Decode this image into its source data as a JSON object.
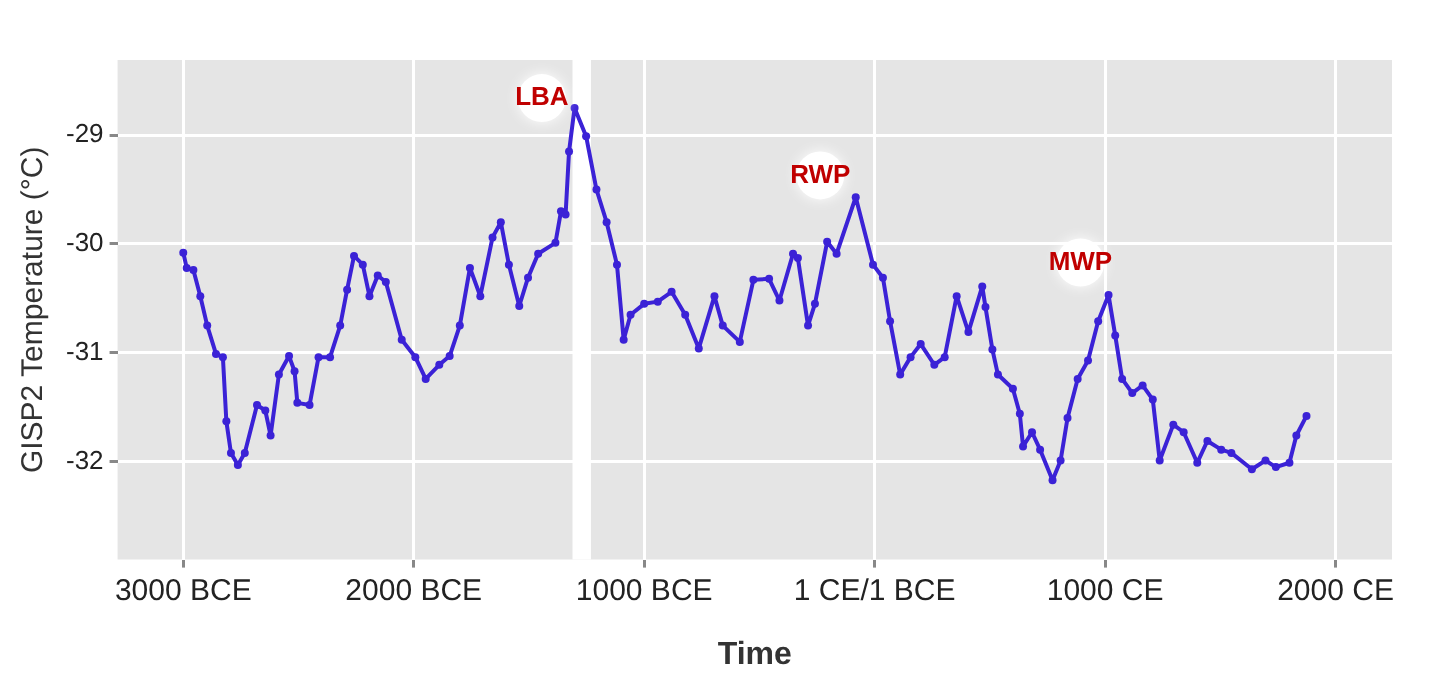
{
  "chart_data": {
    "type": "line",
    "xlabel": "Time",
    "ylabel": "GISP2 Temperature (°C)",
    "series": [
      {
        "color": "#3b22d6",
        "x": [
          -3000,
          -2985,
          -2956,
          -2926,
          -2896,
          -2858,
          -2828,
          -2813,
          -2793,
          -2763,
          -2733,
          -2680,
          -2644,
          -2621,
          -2585,
          -2541,
          -2517,
          -2505,
          -2452,
          -2413,
          -2363,
          -2319,
          -2289,
          -2259,
          -2221,
          -2192,
          -2156,
          -2121,
          -2052,
          -1993,
          -1948,
          -1889,
          -1844,
          -1800,
          -1756,
          -1711,
          -1658,
          -1622,
          -1587,
          -1542,
          -1504,
          -1460,
          -1385,
          -1361,
          -1341,
          -1326,
          -1302,
          -1252,
          -1207,
          -1163,
          -1118,
          -1089,
          -1059,
          -1000,
          -941,
          -881,
          -822,
          -763,
          -695,
          -659,
          -585,
          -526,
          -458,
          -413,
          -354,
          -333,
          -289,
          -259,
          -206,
          -165,
          -82,
          -7,
          36,
          67,
          111,
          156,
          200,
          259,
          304,
          356,
          407,
          467,
          481,
          511,
          535,
          600,
          630,
          644,
          683,
          718,
          772,
          807,
          837,
          881,
          926,
          970,
          1015,
          1044,
          1074,
          1118,
          1163,
          1207,
          1237,
          1296,
          1341,
          1400,
          1444,
          1504,
          1548,
          1637,
          1696,
          1741,
          1800,
          1830,
          1874
        ],
        "values": [
          -30.08,
          -30.22,
          -30.24,
          -30.48,
          -30.75,
          -31.01,
          -31.04,
          -31.63,
          -31.92,
          -32.03,
          -31.92,
          -31.48,
          -31.53,
          -31.76,
          -31.2,
          -31.03,
          -31.17,
          -31.46,
          -31.48,
          -31.04,
          -31.04,
          -30.75,
          -30.42,
          -30.11,
          -30.19,
          -30.48,
          -30.29,
          -30.35,
          -30.88,
          -31.04,
          -31.24,
          -31.11,
          -31.03,
          -30.75,
          -30.22,
          -30.48,
          -29.94,
          -29.8,
          -30.19,
          -30.57,
          -30.31,
          -30.09,
          -29.99,
          -29.7,
          -29.73,
          -29.15,
          -28.75,
          -29.01,
          -29.5,
          -29.8,
          -30.19,
          -30.88,
          -30.65,
          -30.55,
          -30.53,
          -30.44,
          -30.65,
          -30.96,
          -30.48,
          -30.75,
          -30.9,
          -30.33,
          -30.32,
          -30.52,
          -30.09,
          -30.13,
          -30.75,
          -30.55,
          -29.98,
          -30.09,
          -29.57,
          -30.19,
          -30.31,
          -30.71,
          -31.2,
          -31.04,
          -30.92,
          -31.11,
          -31.04,
          -30.48,
          -30.81,
          -30.39,
          -30.58,
          -30.97,
          -31.2,
          -31.33,
          -31.56,
          -31.86,
          -31.73,
          -31.89,
          -32.17,
          -31.99,
          -31.6,
          -31.24,
          -31.07,
          -30.71,
          -30.47,
          -30.84,
          -31.24,
          -31.37,
          -31.3,
          -31.43,
          -31.99,
          -31.66,
          -31.73,
          -32.01,
          -31.81,
          -31.89,
          -31.92,
          -32.07,
          -31.99,
          -32.05,
          -32.01,
          -31.76,
          -31.58
        ]
      }
    ],
    "xlim": [
      -3285,
      2245
    ],
    "xticks": [
      {
        "value": -3000,
        "label": "3000 BCE"
      },
      {
        "value": -2000,
        "label": "2000 BCE"
      },
      {
        "value": -1000,
        "label": "1000 BCE"
      },
      {
        "value": 0,
        "label": "1 CE/1 BCE"
      },
      {
        "value": 1000,
        "label": "1000 CE"
      },
      {
        "value": 2000,
        "label": "2000 CE"
      }
    ],
    "ylim": [
      -32.9,
      -28.31
    ],
    "yticks": [
      -32,
      -31,
      -30,
      -29
    ],
    "grid": true,
    "legend": false,
    "marker": "circle",
    "line_style": "solid",
    "bands": [
      {
        "axis": "x",
        "from": -1311,
        "to": -1231,
        "color": "#ffffff"
      }
    ],
    "annotations": [
      {
        "text": "LBA",
        "x": -1444,
        "y": -28.66
      },
      {
        "text": "RWP",
        "x": -236,
        "y": -29.37
      },
      {
        "text": "MWP",
        "x": 893,
        "y": -30.17
      }
    ]
  }
}
